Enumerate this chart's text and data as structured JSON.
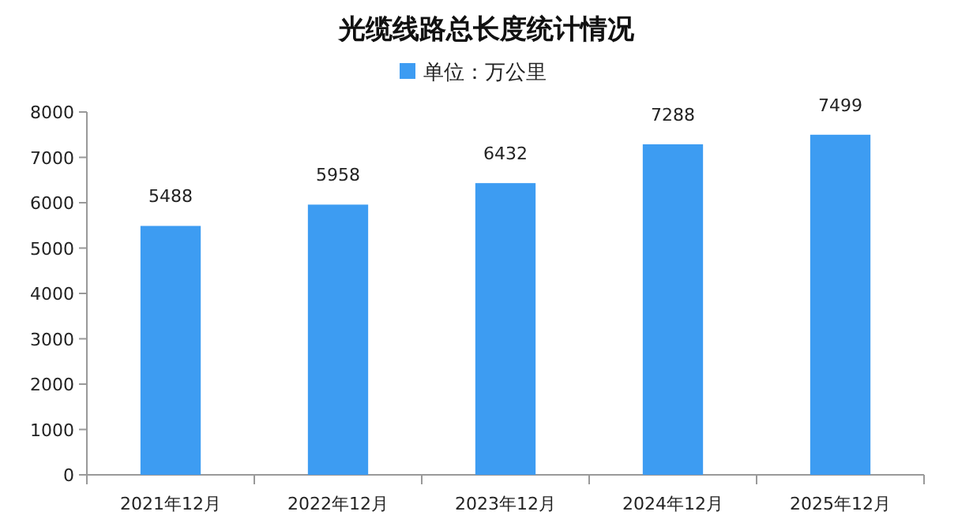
{
  "chart_data": {
    "type": "bar",
    "title": "光缆线路总长度统计情况",
    "categories": [
      "2021年12月",
      "2022年12月",
      "2023年12月",
      "2024年12月",
      "2025年12月"
    ],
    "series": [
      {
        "name": "单位：万公里",
        "color": "#3d9cf2",
        "values": [
          5488,
          5958,
          6432,
          7288,
          7499
        ]
      }
    ],
    "ylim": [
      0,
      8000
    ],
    "yticks": [
      0,
      1000,
      2000,
      3000,
      4000,
      5000,
      6000,
      7000,
      8000
    ],
    "data_labels": true,
    "grid": false,
    "legend": "top"
  }
}
